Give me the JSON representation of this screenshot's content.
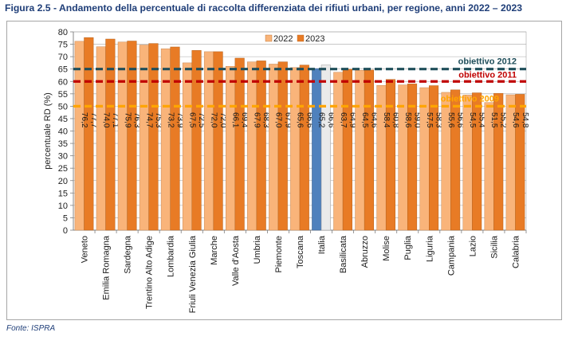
{
  "figure": {
    "title": "Figura 2.5 - Andamento della percentuale di raccolta differenziata dei rifiuti urbani, per regione, anni 2022 – 2023",
    "source": "Fonte: ISPRA"
  },
  "chart_data": {
    "type": "bar",
    "title": "Figura 2.5 - Andamento della percentuale di raccolta differenziata dei rifiuti urbani, per regione, anni 2022 – 2023",
    "xlabel": "",
    "ylabel": "percentuale RD (%)",
    "ylim": [
      0,
      80
    ],
    "yticks": [
      0,
      5,
      10,
      15,
      20,
      25,
      30,
      35,
      40,
      45,
      50,
      55,
      60,
      65,
      70,
      75,
      80
    ],
    "grid": true,
    "legend_position": "top-center",
    "categories": [
      "Veneto",
      "Emilia Romagna",
      "Sardegna",
      "Trentino Alto Adige",
      "Lombardia",
      "Friuli Venezia Giulia",
      "Marche",
      "Valle d'Aosta",
      "Umbria",
      "Piemonte",
      "Toscana",
      "Italia",
      "Basilicata",
      "Abruzzo",
      "Molise",
      "Puglia",
      "Liguria",
      "Campania",
      "Lazio",
      "Sicilia",
      "Calabria"
    ],
    "series": [
      {
        "name": "2022",
        "values": [
          76.2,
          74.0,
          75.9,
          74.7,
          73.2,
          67.5,
          72.0,
          66.1,
          67.9,
          67.0,
          65.6,
          65.2,
          63.7,
          64.5,
          58.4,
          58.6,
          57.5,
          55.6,
          54.5,
          51.5,
          54.6
        ],
        "labels": [
          "76,2",
          "74,0",
          "75,9",
          "74,7",
          "73,2",
          "67,5",
          "72,0",
          "66,1",
          "67,9",
          "67,0",
          "65,6",
          "65,2",
          "63,7",
          "64,5",
          "58,4",
          "58,6",
          "57,5",
          "55,6",
          "54,5",
          "51,5",
          "54,6"
        ]
      },
      {
        "name": "2023",
        "values": [
          77.7,
          77.1,
          76.3,
          75.3,
          73.9,
          72.5,
          72.0,
          69.4,
          68.3,
          67.9,
          66.6,
          66.6,
          64.9,
          64.6,
          60.8,
          59.0,
          58.3,
          56.6,
          55.4,
          55.2,
          54.8
        ],
        "labels": [
          "77,7",
          "77,1",
          "76,3",
          "75,3",
          "73,9",
          "72,5",
          "72,0",
          "69,4",
          "68,3",
          "67,9",
          "66,6",
          "66,6",
          "64,9",
          "64,6",
          "60,8",
          "59,0",
          "58,3",
          "56,6",
          "55,4",
          "55,2",
          "54,8"
        ]
      }
    ],
    "highlight_category": "Italia",
    "reference_lines": [
      {
        "label": "obiettivo 2012",
        "value": 65,
        "color": "#1f4e5a"
      },
      {
        "label": "obiettivo 2011",
        "value": 60,
        "color": "#c00000"
      },
      {
        "label": "obiettivo 2009",
        "value": 50,
        "color": "#ffa500"
      }
    ],
    "colors": {
      "s2022": "#f9b47a",
      "s2023": "#e87b25",
      "italia2022": "#4f81bd",
      "italia2023": "#eaeaea",
      "gridline": "#a6a6a6",
      "axis": "#7f7f7f"
    }
  }
}
